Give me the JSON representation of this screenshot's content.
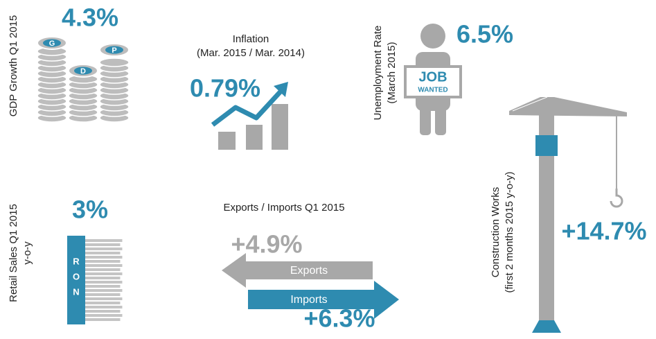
{
  "gdp": {
    "label": "GDP Growth Q1 2015",
    "value": "4.3%",
    "coins": [
      "G",
      "D",
      "P"
    ]
  },
  "inflation": {
    "label": [
      "Inflation",
      "(Mar. 2015 / Mar. 2014)"
    ],
    "value": "0.79%"
  },
  "unemployment": {
    "label": [
      "Unemployment Rate",
      "(March 2015)"
    ],
    "value": "6.5%",
    "sign": [
      "JOB",
      "WANTED"
    ]
  },
  "construction": {
    "label": [
      "Construction Works",
      "(first 2 months 2015 y-o-y)"
    ],
    "value": "+14.7%"
  },
  "retail": {
    "label": [
      "Retail Sales Q1 2015",
      "y-o-y"
    ],
    "value": "3%",
    "band": [
      "R",
      "O",
      "N"
    ]
  },
  "trade": {
    "title": "Exports / Imports Q1 2015",
    "exports": {
      "label": "Exports",
      "value": "+4.9%"
    },
    "imports": {
      "label": "Imports",
      "value": "+6.3%"
    }
  }
}
